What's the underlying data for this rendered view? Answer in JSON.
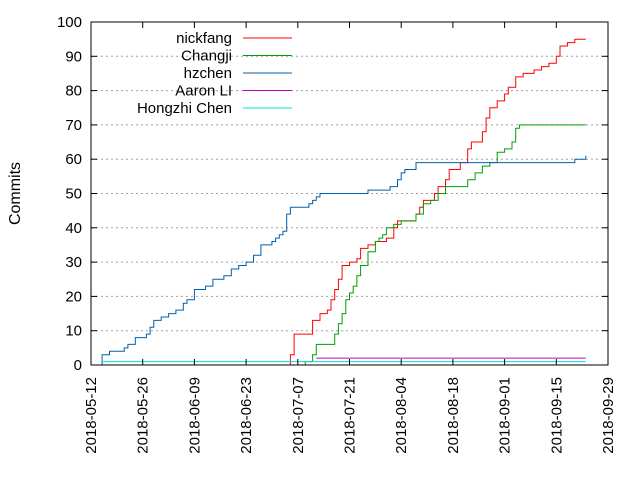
{
  "chart_data": {
    "type": "line",
    "title": "",
    "xlabel": "",
    "ylabel": "Commits",
    "xlim": [
      "2018-05-12",
      "2018-09-29"
    ],
    "ylim": [
      0,
      100
    ],
    "x_ticks": [
      "2018-05-12",
      "2018-05-26",
      "2018-06-09",
      "2018-06-23",
      "2018-07-07",
      "2018-07-21",
      "2018-08-04",
      "2018-08-18",
      "2018-09-01",
      "2018-09-15",
      "2018-09-29"
    ],
    "y_ticks": [
      0,
      10,
      20,
      30,
      40,
      50,
      60,
      70,
      80,
      90,
      100
    ],
    "grid": true,
    "legend_position": "top-left",
    "series": [
      {
        "name": "nickfang",
        "color": "#ff0000",
        "step": true,
        "points": [
          [
            "2018-07-05",
            0
          ],
          [
            "2018-07-05",
            3
          ],
          [
            "2018-07-06",
            9
          ],
          [
            "2018-07-10",
            9
          ],
          [
            "2018-07-11",
            13
          ],
          [
            "2018-07-13",
            15
          ],
          [
            "2018-07-15",
            16
          ],
          [
            "2018-07-16",
            19
          ],
          [
            "2018-07-17",
            22
          ],
          [
            "2018-07-18",
            25
          ],
          [
            "2018-07-19",
            29
          ],
          [
            "2018-07-21",
            30
          ],
          [
            "2018-07-23",
            31
          ],
          [
            "2018-07-24",
            34
          ],
          [
            "2018-07-26",
            35
          ],
          [
            "2018-07-28",
            36
          ],
          [
            "2018-07-31",
            37
          ],
          [
            "2018-08-01",
            37
          ],
          [
            "2018-08-02",
            40
          ],
          [
            "2018-08-03",
            42
          ],
          [
            "2018-08-08",
            44
          ],
          [
            "2018-08-09",
            46
          ],
          [
            "2018-08-10",
            48
          ],
          [
            "2018-08-13",
            50
          ],
          [
            "2018-08-14",
            52
          ],
          [
            "2018-08-16",
            54
          ],
          [
            "2018-08-17",
            57
          ],
          [
            "2018-08-20",
            59
          ],
          [
            "2018-08-22",
            63
          ],
          [
            "2018-08-23",
            65
          ],
          [
            "2018-08-26",
            68
          ],
          [
            "2018-08-27",
            72
          ],
          [
            "2018-08-28",
            75
          ],
          [
            "2018-08-30",
            77
          ],
          [
            "2018-09-01",
            79
          ],
          [
            "2018-09-02",
            81
          ],
          [
            "2018-09-04",
            84
          ],
          [
            "2018-09-06",
            85
          ],
          [
            "2018-09-09",
            86
          ],
          [
            "2018-09-11",
            87
          ],
          [
            "2018-09-13",
            88
          ],
          [
            "2018-09-15",
            90
          ],
          [
            "2018-09-16",
            93
          ],
          [
            "2018-09-18",
            94
          ],
          [
            "2018-09-20",
            95
          ],
          [
            "2018-09-23",
            95
          ]
        ]
      },
      {
        "name": "Changji",
        "color": "#00a000",
        "step": true,
        "points": [
          [
            "2018-07-08",
            0
          ],
          [
            "2018-07-09",
            1
          ],
          [
            "2018-07-11",
            3
          ],
          [
            "2018-07-12",
            6
          ],
          [
            "2018-07-16",
            6
          ],
          [
            "2018-07-17",
            9
          ],
          [
            "2018-07-18",
            12
          ],
          [
            "2018-07-19",
            15
          ],
          [
            "2018-07-20",
            19
          ],
          [
            "2018-07-21",
            21
          ],
          [
            "2018-07-22",
            23
          ],
          [
            "2018-07-23",
            26
          ],
          [
            "2018-07-24",
            29
          ],
          [
            "2018-07-26",
            33
          ],
          [
            "2018-07-28",
            36
          ],
          [
            "2018-07-29",
            37
          ],
          [
            "2018-07-30",
            38
          ],
          [
            "2018-07-31",
            40
          ],
          [
            "2018-08-02",
            41
          ],
          [
            "2018-08-04",
            42
          ],
          [
            "2018-08-08",
            44
          ],
          [
            "2018-08-10",
            47
          ],
          [
            "2018-08-12",
            48
          ],
          [
            "2018-08-14",
            50
          ],
          [
            "2018-08-16",
            52
          ],
          [
            "2018-08-22",
            54
          ],
          [
            "2018-08-24",
            56
          ],
          [
            "2018-08-26",
            58
          ],
          [
            "2018-08-28",
            59
          ],
          [
            "2018-08-30",
            62
          ],
          [
            "2018-09-01",
            63
          ],
          [
            "2018-09-03",
            65
          ],
          [
            "2018-09-04",
            69
          ],
          [
            "2018-09-05",
            70
          ],
          [
            "2018-09-23",
            70
          ]
        ]
      },
      {
        "name": "hzchen",
        "color": "#0060ad",
        "step": true,
        "points": [
          [
            "2018-05-15",
            0
          ],
          [
            "2018-05-15",
            3
          ],
          [
            "2018-05-17",
            4
          ],
          [
            "2018-05-21",
            5
          ],
          [
            "2018-05-22",
            6
          ],
          [
            "2018-05-24",
            8
          ],
          [
            "2018-05-27",
            9
          ],
          [
            "2018-05-28",
            11
          ],
          [
            "2018-05-29",
            13
          ],
          [
            "2018-05-31",
            14
          ],
          [
            "2018-06-02",
            15
          ],
          [
            "2018-06-04",
            16
          ],
          [
            "2018-06-06",
            18
          ],
          [
            "2018-06-07",
            19
          ],
          [
            "2018-06-09",
            22
          ],
          [
            "2018-06-12",
            23
          ],
          [
            "2018-06-14",
            25
          ],
          [
            "2018-06-17",
            26
          ],
          [
            "2018-06-19",
            28
          ],
          [
            "2018-06-21",
            29
          ],
          [
            "2018-06-23",
            30
          ],
          [
            "2018-06-25",
            32
          ],
          [
            "2018-06-27",
            35
          ],
          [
            "2018-06-30",
            36
          ],
          [
            "2018-07-01",
            37
          ],
          [
            "2018-07-02",
            38
          ],
          [
            "2018-07-03",
            39
          ],
          [
            "2018-07-04",
            44
          ],
          [
            "2018-07-05",
            46
          ],
          [
            "2018-07-10",
            47
          ],
          [
            "2018-07-11",
            48
          ],
          [
            "2018-07-12",
            49
          ],
          [
            "2018-07-13",
            50
          ],
          [
            "2018-07-25",
            50
          ],
          [
            "2018-07-26",
            51
          ],
          [
            "2018-08-01",
            52
          ],
          [
            "2018-08-03",
            54
          ],
          [
            "2018-08-04",
            56
          ],
          [
            "2018-08-05",
            57
          ],
          [
            "2018-08-08",
            59
          ],
          [
            "2018-09-20",
            60
          ],
          [
            "2018-09-23",
            61
          ]
        ]
      },
      {
        "name": "Aaron LI",
        "color": "#c000c0",
        "step": true,
        "points": [
          [
            "2018-07-12",
            2
          ],
          [
            "2018-09-23",
            2
          ]
        ]
      },
      {
        "name": "Hongzhi Chen",
        "color": "#00e0e0",
        "step": true,
        "points": [
          [
            "2018-05-15",
            1
          ],
          [
            "2018-09-23",
            1
          ]
        ]
      }
    ]
  }
}
